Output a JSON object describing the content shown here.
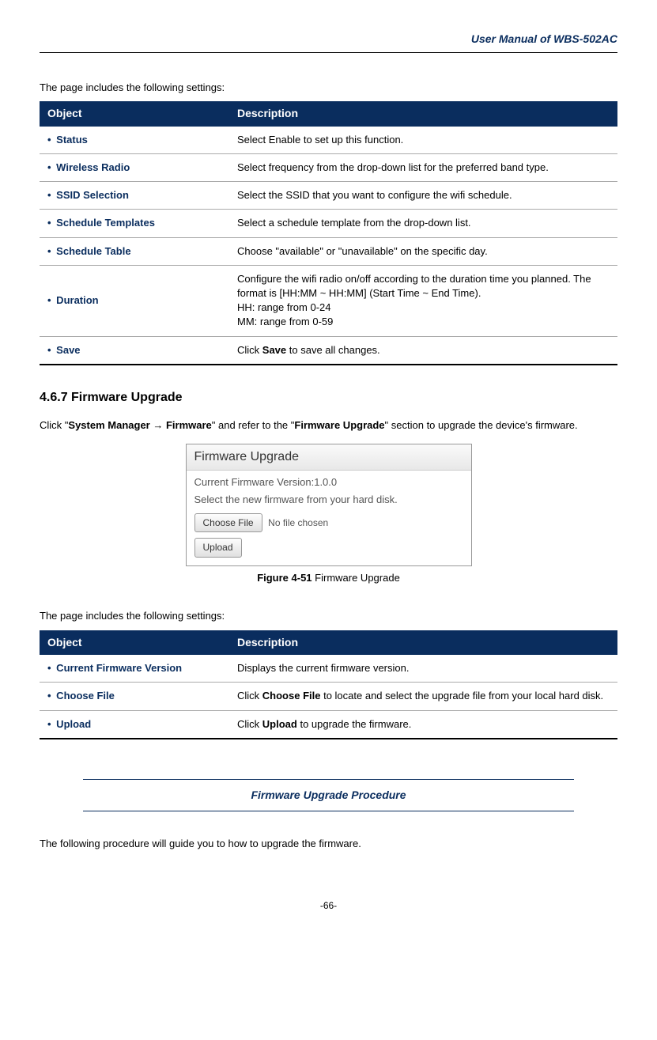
{
  "header": {
    "title": "User Manual of WBS-502AC"
  },
  "intro1": "The page includes the following settings:",
  "table1": {
    "header_object": "Object",
    "header_desc": "Description",
    "rows": [
      {
        "object": "Status",
        "desc": "Select Enable to set up this function."
      },
      {
        "object": "Wireless Radio",
        "desc": "Select frequency from the drop-down list for the preferred band type."
      },
      {
        "object": "SSID Selection",
        "desc": "Select the SSID that you want to configure the wifi schedule."
      },
      {
        "object": "Schedule Templates",
        "desc": "Select a schedule template from the drop-down list."
      },
      {
        "object": "Schedule Table",
        "desc": "Choose \"available\" or \"unavailable\" on the specific day."
      },
      {
        "object": "Duration",
        "desc": "Configure the wifi radio on/off according to the duration time you planned. The format is [HH:MM ~ HH:MM] (Start Time ~ End Time).\nHH: range from 0-24\nMM: range from 0-59"
      },
      {
        "object": "Save",
        "desc_pre": "Click ",
        "desc_bold": "Save",
        "desc_post": " to save all changes."
      }
    ]
  },
  "section": {
    "heading": "4.6.7  Firmware Upgrade",
    "nav_pre": "Click \"",
    "nav_b1": "System Manager ",
    "nav_arrow": "→",
    "nav_b2": " Firmware",
    "nav_mid": "\" and refer to the \"",
    "nav_b3": "Firmware Upgrade",
    "nav_post": "\" section to upgrade the device's firmware."
  },
  "firmware_box": {
    "title": "Firmware Upgrade",
    "version_line": "Current Firmware Version:1.0.0",
    "select_line": "Select the new firmware from your hard disk.",
    "choose_btn": "Choose File",
    "no_file": "No file chosen",
    "upload_btn": "Upload"
  },
  "figure": {
    "label": "Figure 4-51",
    "text": " Firmware Upgrade"
  },
  "intro2": "The page includes the following settings:",
  "table2": {
    "header_object": "Object",
    "header_desc": "Description",
    "rows": [
      {
        "object": "Current Firmware Version",
        "desc": "Displays the current firmware version."
      },
      {
        "object": "Choose File",
        "desc_pre": "Click ",
        "desc_bold": "Choose File",
        "desc_post": " to locate and select the upgrade file from your local hard disk."
      },
      {
        "object": "Upload",
        "desc_pre": "Click ",
        "desc_bold": "Upload",
        "desc_post": " to upgrade the firmware."
      }
    ]
  },
  "procedure": {
    "title": "Firmware Upgrade Procedure",
    "text": "The following procedure will guide you to how to upgrade the firmware."
  },
  "footer": {
    "page": "-66-"
  }
}
